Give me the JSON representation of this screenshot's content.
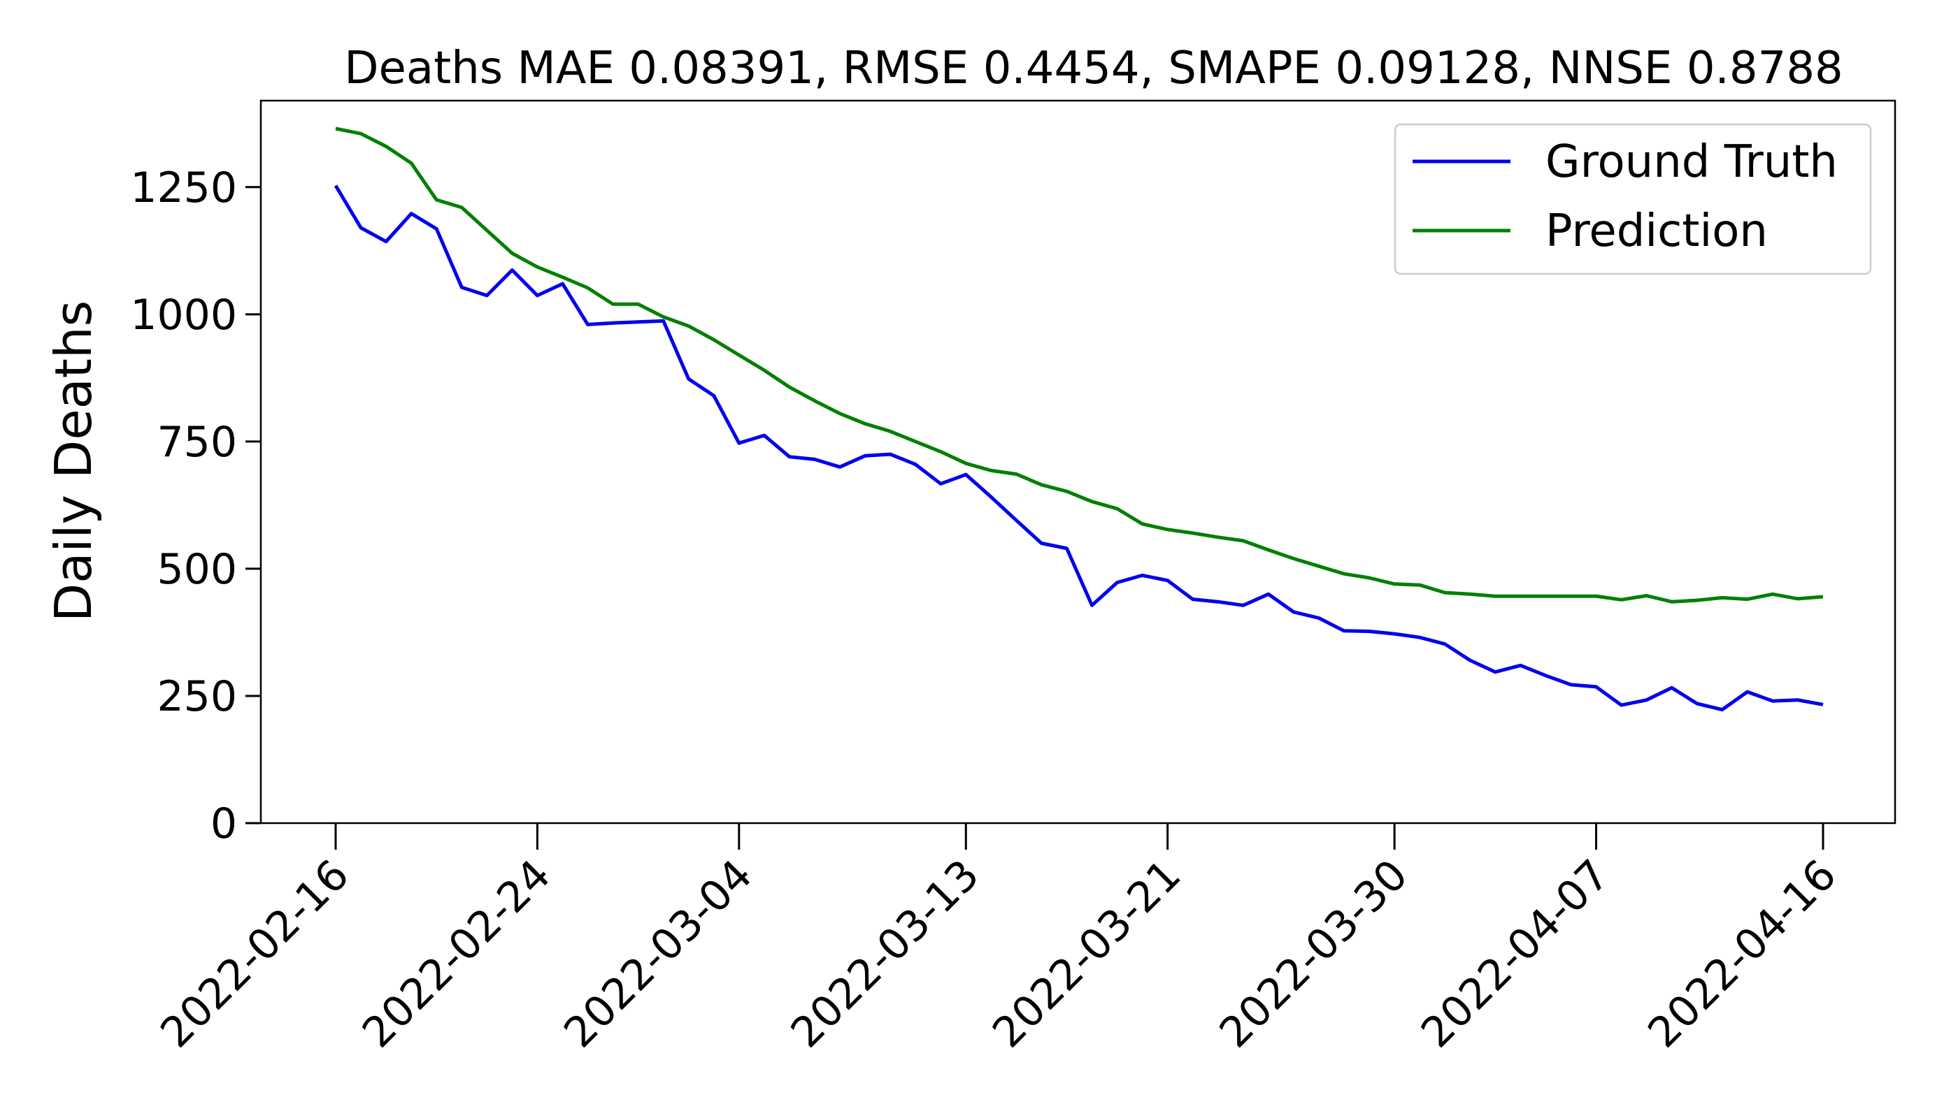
{
  "chart_data": {
    "type": "line",
    "title": "Deaths MAE 0.08391, RMSE 0.4454, SMAPE 0.09128, NNSE 0.8788",
    "xlabel": "",
    "ylabel": "Daily Deaths",
    "ylim": [
      0,
      1420
    ],
    "yticks": [
      0,
      250,
      500,
      750,
      1000,
      1250
    ],
    "ytick_labels": [
      "0",
      "250",
      "500",
      "750",
      "1000",
      "1250"
    ],
    "x": [
      "2022-02-16",
      "2022-02-17",
      "2022-02-18",
      "2022-02-19",
      "2022-02-20",
      "2022-02-21",
      "2022-02-22",
      "2022-02-23",
      "2022-02-24",
      "2022-02-25",
      "2022-02-26",
      "2022-02-27",
      "2022-02-28",
      "2022-03-01",
      "2022-03-02",
      "2022-03-03",
      "2022-03-04",
      "2022-03-05",
      "2022-03-06",
      "2022-03-07",
      "2022-03-08",
      "2022-03-09",
      "2022-03-10",
      "2022-03-11",
      "2022-03-12",
      "2022-03-13",
      "2022-03-14",
      "2022-03-15",
      "2022-03-16",
      "2022-03-17",
      "2022-03-18",
      "2022-03-19",
      "2022-03-20",
      "2022-03-21",
      "2022-03-22",
      "2022-03-23",
      "2022-03-24",
      "2022-03-25",
      "2022-03-26",
      "2022-03-27",
      "2022-03-28",
      "2022-03-29",
      "2022-03-30",
      "2022-03-31",
      "2022-04-01",
      "2022-04-02",
      "2022-04-03",
      "2022-04-04",
      "2022-04-05",
      "2022-04-06",
      "2022-04-07",
      "2022-04-08",
      "2022-04-09",
      "2022-04-10",
      "2022-04-11",
      "2022-04-12",
      "2022-04-13",
      "2022-04-14",
      "2022-04-15",
      "2022-04-16"
    ],
    "xticks": [
      "2022-02-16",
      "2022-02-24",
      "2022-03-04",
      "2022-03-13",
      "2022-03-21",
      "2022-03-30",
      "2022-04-07",
      "2022-04-16"
    ],
    "series": [
      {
        "name": "Ground Truth",
        "color": "#0000ee",
        "values": [
          1253,
          1170,
          1143,
          1198,
          1168,
          1053,
          1037,
          1087,
          1037,
          1060,
          980,
          983,
          985,
          987,
          873,
          840,
          747,
          762,
          720,
          715,
          700,
          722,
          725,
          705,
          667,
          685,
          641,
          595,
          550,
          540,
          428,
          473,
          487,
          477,
          440,
          435,
          428,
          450,
          415,
          403,
          378,
          377,
          372,
          365,
          352,
          320,
          297,
          310,
          290,
          272,
          268,
          232,
          242,
          266,
          235,
          223,
          258,
          240,
          242,
          233
        ]
      },
      {
        "name": "Prediction",
        "color": "#008000",
        "values": [
          1365,
          1355,
          1330,
          1297,
          1225,
          1210,
          1165,
          1120,
          1093,
          1073,
          1052,
          1020,
          1020,
          995,
          977,
          950,
          920,
          890,
          857,
          830,
          805,
          785,
          770,
          750,
          730,
          707,
          693,
          686,
          665,
          652,
          632,
          618,
          588,
          577,
          570,
          562,
          555,
          537,
          520,
          505,
          490,
          482,
          470,
          468,
          453,
          450,
          446,
          446,
          446,
          446,
          446,
          439,
          447,
          435,
          438,
          443,
          440,
          450,
          441,
          445
        ]
      }
    ],
    "legend": {
      "position": "top-right",
      "entries": [
        "Ground Truth",
        "Prediction"
      ]
    },
    "grid": false
  }
}
